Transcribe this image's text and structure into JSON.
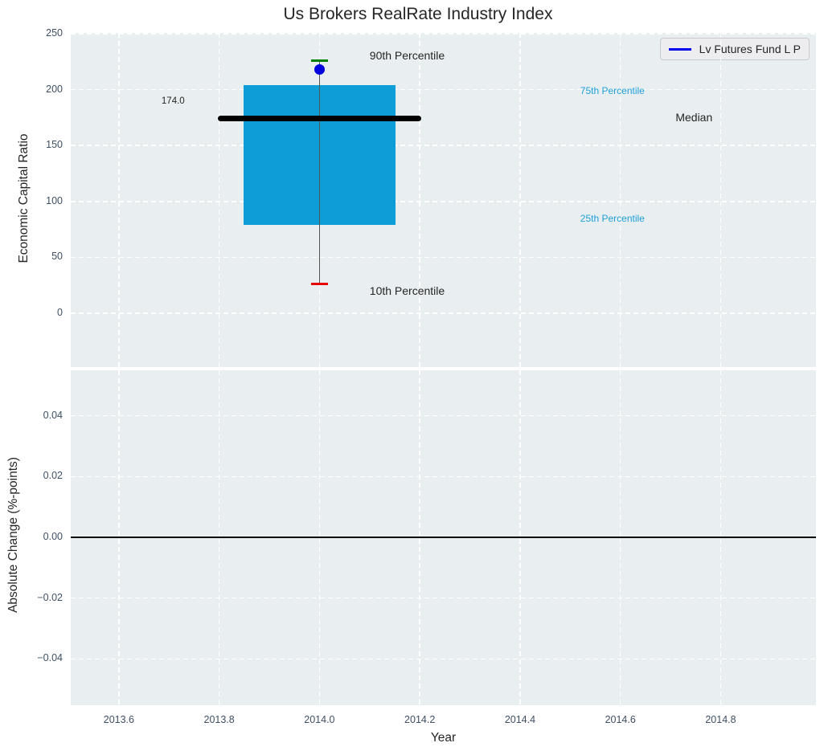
{
  "title": "Us Brokers RealRate Industry Index",
  "legend": {
    "label": "Lv Futures Fund L P"
  },
  "colors": {
    "plot_bg": "#e9eef0",
    "grid": "#ffffff",
    "box_fill": "#0d9ed8",
    "median_line": "#000000",
    "whisker": "#555555",
    "cap_90": "#008000",
    "cap_10": "#e60000",
    "fund_dot": "#0000dd",
    "percentile_text": "#1fa0d8",
    "tick_text": "#3e4f63",
    "text_dark": "#262626",
    "legend_bg": "#ededf0",
    "legend_line": "#0000ee"
  },
  "chart_data": [
    {
      "type": "box",
      "title": "Us Brokers RealRate Industry Index",
      "ylabel": "Economic Capital Ratio",
      "xlim": [
        2013.504,
        2014.99
      ],
      "ylim": [
        -48.1,
        250.7
      ],
      "x_center": 2014.0,
      "box_halfwidth": 0.152,
      "median_halfwidth": 0.203,
      "cap_halfwidth": 0.017,
      "values": {
        "p90": 226,
        "p75": 204,
        "median": 174.0,
        "p25": 79,
        "p10": 26
      },
      "fund_point": {
        "series": "Lv Futures Fund L P",
        "x": 2014.0,
        "y": 218
      },
      "median_value_label": "174.0",
      "grid": true,
      "legend_position": "upper right",
      "yticks": [
        {
          "v": 0,
          "label": "0"
        },
        {
          "v": 50,
          "label": "50"
        },
        {
          "v": 100,
          "label": "100"
        },
        {
          "v": 150,
          "label": "150"
        },
        {
          "v": 200,
          "label": "200"
        },
        {
          "v": 250,
          "label": "250"
        }
      ],
      "annotations": [
        {
          "id": "p90-label",
          "label": "90th Percentile",
          "x": 2014.1,
          "y": 230,
          "style": "dark"
        },
        {
          "id": "p75-label",
          "label": "75th Percentile",
          "x": 2014.52,
          "y": 199,
          "style": "cyan"
        },
        {
          "id": "median-label",
          "label": "Median",
          "x": 2014.71,
          "y": 175,
          "style": "dark"
        },
        {
          "id": "p25-label",
          "label": "25th Percentile",
          "x": 2014.52,
          "y": 85,
          "style": "cyan"
        },
        {
          "id": "p10-label",
          "label": "10th Percentile",
          "x": 2014.1,
          "y": 20,
          "style": "dark"
        },
        {
          "id": "median-value",
          "label": "174.0",
          "x": 2013.685,
          "y": 189,
          "style": "small"
        }
      ]
    },
    {
      "type": "line",
      "ylabel": "Absolute Change (%-points)",
      "xlabel": "Year",
      "xlim": [
        2013.504,
        2014.99
      ],
      "ylim": [
        -0.0552,
        0.055
      ],
      "zero_line": 0.0,
      "grid": true,
      "yticks": [
        {
          "v": 0.04,
          "label": "0.04"
        },
        {
          "v": 0.02,
          "label": "0.02"
        },
        {
          "v": 0.0,
          "label": "0.00"
        },
        {
          "v": -0.02,
          "label": "−0.02"
        },
        {
          "v": -0.04,
          "label": "−0.04"
        }
      ],
      "xticks": [
        {
          "v": 2013.6,
          "label": "2013.6"
        },
        {
          "v": 2013.8,
          "label": "2013.8"
        },
        {
          "v": 2014.0,
          "label": "2014.0"
        },
        {
          "v": 2014.2,
          "label": "2014.2"
        },
        {
          "v": 2014.4,
          "label": "2014.4"
        },
        {
          "v": 2014.6,
          "label": "2014.6"
        },
        {
          "v": 2014.8,
          "label": "2014.8"
        }
      ]
    }
  ]
}
